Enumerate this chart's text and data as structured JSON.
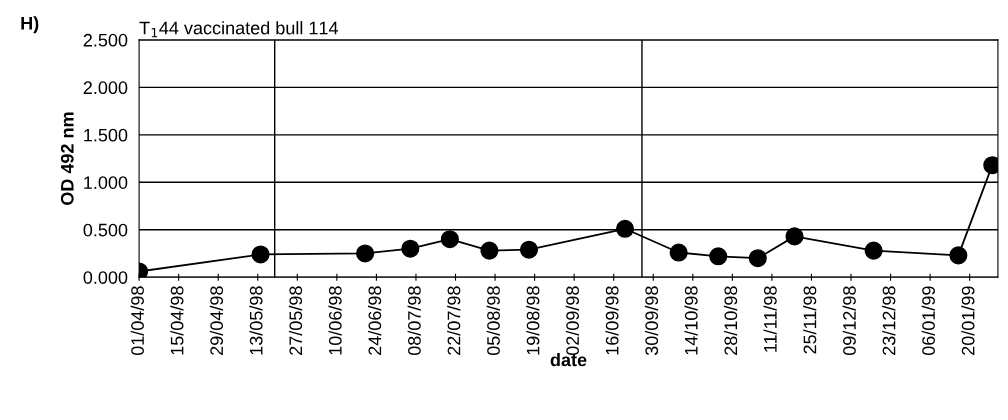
{
  "chart_data": {
    "type": "line",
    "title": "T$_{1}$44 vaccinated bull 114",
    "xlabel": "date",
    "ylabel": "OD 492 nm",
    "annotations": [
      "H)"
    ],
    "x": [
      "1998-04-01",
      "1998-05-14",
      "1998-06-20",
      "1998-07-06",
      "1998-07-20",
      "1998-08-03",
      "1998-08-17",
      "1998-09-20",
      "1998-10-09",
      "1998-10-23",
      "1998-11-06",
      "1998-11-19",
      "1998-12-17",
      "1999-01-16",
      "1999-01-28"
    ],
    "series": [
      {
        "color": "#000000",
        "values": [
          0.06,
          0.24,
          0.25,
          0.3,
          0.4,
          0.28,
          0.29,
          0.51,
          0.26,
          0.22,
          0.2,
          0.43,
          0.28,
          0.23,
          1.18
        ]
      }
    ],
    "marker": "circle",
    "line_style": "solid",
    "grid": "y",
    "legend": false,
    "xlim": [
      "1998-04-01",
      "1999-01-30"
    ],
    "xticks": [
      {
        "value": "1998-04-01",
        "label": "01/04/98"
      },
      {
        "value": "1998-04-15",
        "label": "15/04/98"
      },
      {
        "value": "1998-04-29",
        "label": "29/04/98"
      },
      {
        "value": "1998-05-13",
        "label": "13/05/98"
      },
      {
        "value": "1998-05-27",
        "label": "27/05/98"
      },
      {
        "value": "1998-06-10",
        "label": "10/06/98"
      },
      {
        "value": "1998-06-24",
        "label": "24/06/98"
      },
      {
        "value": "1998-07-08",
        "label": "08/07/98"
      },
      {
        "value": "1998-07-22",
        "label": "22/07/98"
      },
      {
        "value": "1998-08-05",
        "label": "05/08/98"
      },
      {
        "value": "1998-08-19",
        "label": "19/08/98"
      },
      {
        "value": "1998-09-02",
        "label": "02/09/98"
      },
      {
        "value": "1998-09-16",
        "label": "16/09/98"
      },
      {
        "value": "1998-09-30",
        "label": "30/09/98"
      },
      {
        "value": "1998-10-14",
        "label": "14/10/98"
      },
      {
        "value": "1998-10-28",
        "label": "28/10/98"
      },
      {
        "value": "1998-11-11",
        "label": "11/11/98"
      },
      {
        "value": "1998-11-25",
        "label": "25/11/98"
      },
      {
        "value": "1998-12-09",
        "label": "09/12/98"
      },
      {
        "value": "1998-12-23",
        "label": "23/12/98"
      },
      {
        "value": "1999-01-06",
        "label": "06/01/99"
      },
      {
        "value": "1999-01-20",
        "label": "20/01/99"
      }
    ],
    "ylim": [
      0,
      2.5
    ],
    "yticks": [
      {
        "value": 0,
        "label": "0.000"
      },
      {
        "value": 0.5,
        "label": "0.500"
      },
      {
        "value": 1,
        "label": "1.000"
      },
      {
        "value": 1.5,
        "label": "1.500"
      },
      {
        "value": 2,
        "label": "2.000"
      },
      {
        "value": 2.5,
        "label": "2.500"
      }
    ],
    "ref_lines": [
      {
        "axis": "x",
        "value": "1998-05-19",
        "color": "#000000",
        "line_style": "solid"
      },
      {
        "axis": "x",
        "value": "1998-09-26",
        "color": "#000000",
        "line_style": "solid"
      }
    ]
  }
}
